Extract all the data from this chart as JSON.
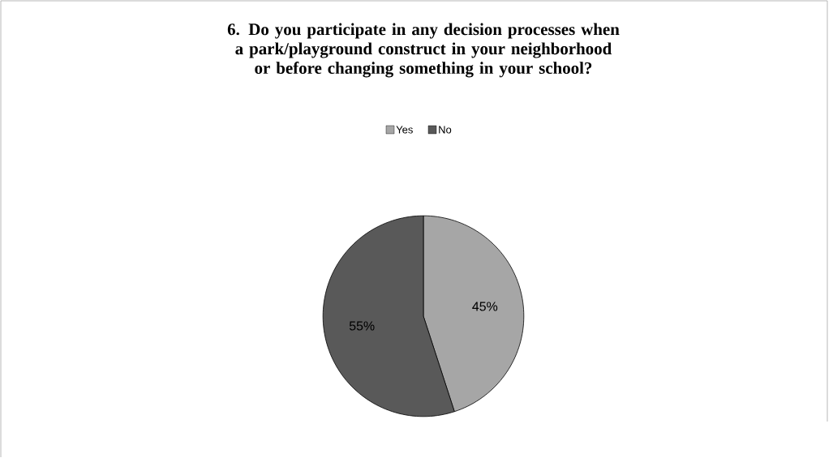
{
  "chart_data": {
    "type": "pie",
    "title": "6. Do you participate in any decision processes when a park/playground construct in your neighborhood or before changing something in your school?",
    "categories": [
      "Yes",
      "No"
    ],
    "values": [
      45,
      55
    ],
    "colors": [
      "#a6a6a6",
      "#595959"
    ],
    "value_labels": [
      "45%",
      "55%"
    ],
    "legend": "top"
  }
}
